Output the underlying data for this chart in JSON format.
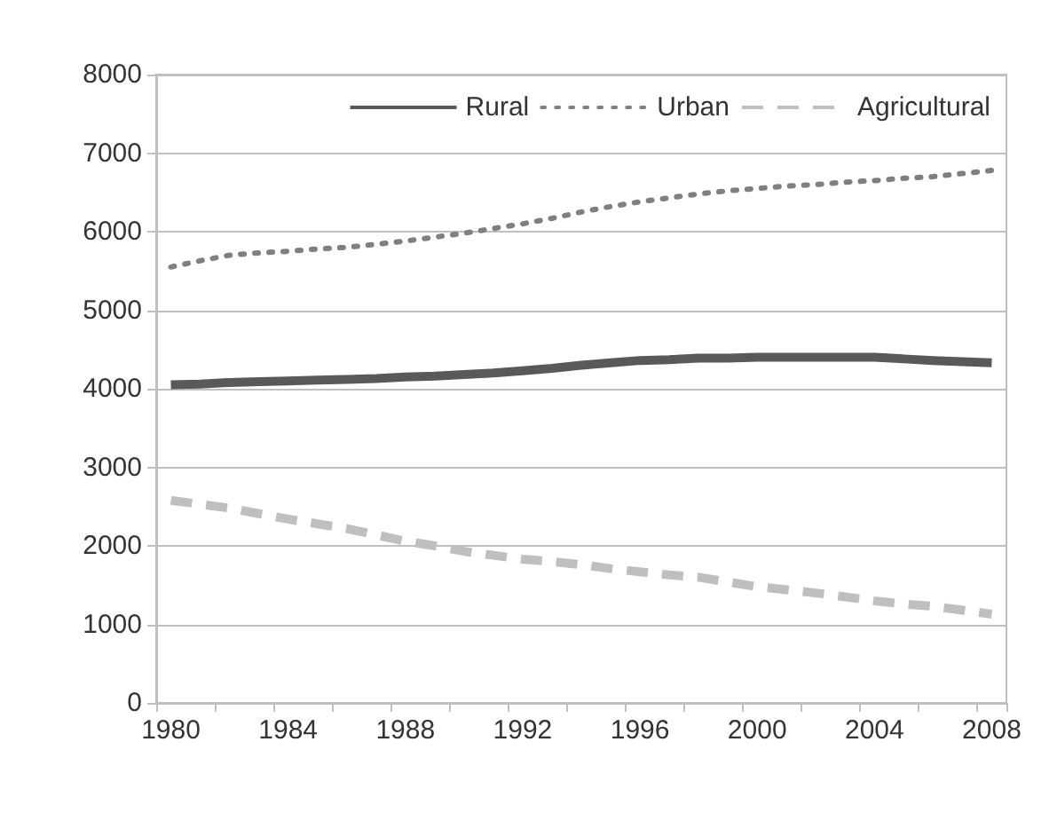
{
  "chart_data": {
    "type": "line",
    "categories": [
      "1980",
      null,
      null,
      null,
      "1984",
      null,
      null,
      null,
      "1988",
      null,
      null,
      null,
      "1992",
      null,
      null,
      null,
      "1996",
      null,
      null,
      null,
      "2000",
      null,
      null,
      null,
      "2004",
      null,
      null,
      null,
      "2008"
    ],
    "series": [
      {
        "name": "Rural",
        "color": "#595959",
        "line_style": "solid",
        "values": [
          4050,
          4060,
          4080,
          4090,
          4100,
          4110,
          4120,
          4130,
          4150,
          4160,
          4180,
          4200,
          4230,
          4260,
          4300,
          4330,
          4360,
          4370,
          4390,
          4390,
          4400,
          4400,
          4400,
          4400,
          4400,
          4380,
          4360,
          4345,
          4330
        ]
      },
      {
        "name": "Urban",
        "color": "#7f7f7f",
        "line_style": "dotted",
        "values": [
          5550,
          5630,
          5700,
          5730,
          5750,
          5780,
          5800,
          5840,
          5880,
          5930,
          5980,
          6040,
          6100,
          6170,
          6250,
          6320,
          6380,
          6430,
          6480,
          6520,
          6550,
          6580,
          6600,
          6630,
          6650,
          6680,
          6700,
          6740,
          6780
        ]
      },
      {
        "name": "Agricultural",
        "color": "#bfbfbf",
        "line_style": "dashed",
        "values": [
          2580,
          2530,
          2480,
          2410,
          2340,
          2280,
          2220,
          2140,
          2060,
          2000,
          1930,
          1880,
          1830,
          1800,
          1760,
          1710,
          1670,
          1630,
          1600,
          1540,
          1480,
          1440,
          1400,
          1350,
          1300,
          1260,
          1230,
          1180,
          1130
        ]
      }
    ],
    "ylim": [
      0,
      8000
    ],
    "yticks": [
      0,
      1000,
      2000,
      3000,
      4000,
      5000,
      6000,
      7000,
      8000
    ],
    "grid": "y",
    "legend": "top right",
    "marker": "none"
  }
}
